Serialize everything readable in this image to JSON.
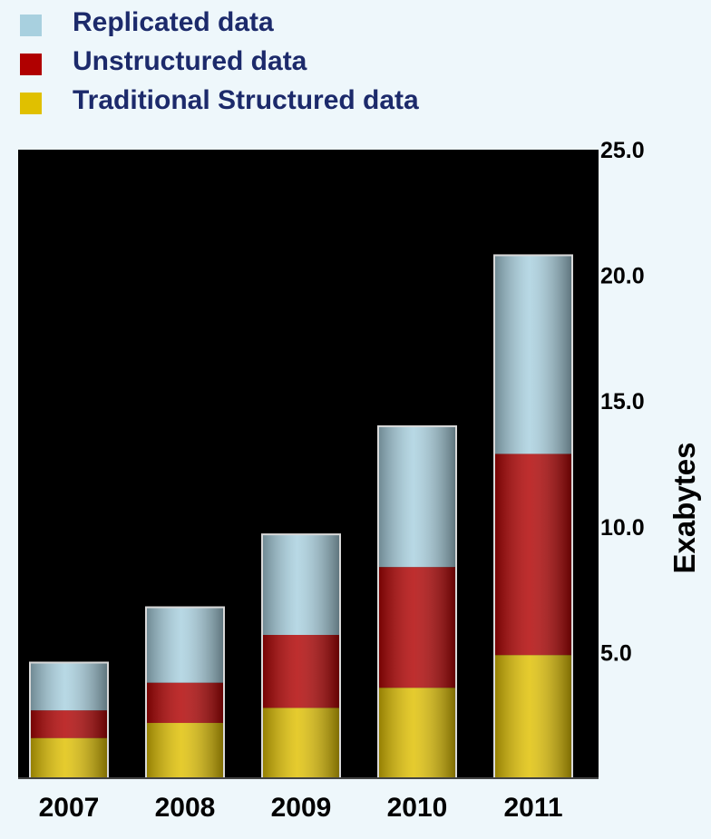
{
  "chart_data": {
    "type": "bar",
    "stacked": true,
    "categories": [
      "2007",
      "2008",
      "2009",
      "2010",
      "2011"
    ],
    "series": [
      {
        "name": "Traditional Structured data",
        "values": [
          1.6,
          2.2,
          2.8,
          3.6,
          4.9
        ],
        "color": "#e0c000"
      },
      {
        "name": "Unstructured data",
        "values": [
          1.1,
          1.6,
          2.9,
          4.8,
          8.0
        ],
        "color": "#b00000"
      },
      {
        "name": "Replicated data",
        "values": [
          1.9,
          3.0,
          4.0,
          5.6,
          7.9
        ],
        "color": "#a8d0df"
      }
    ],
    "ylabel": "Exabytes",
    "ylim": [
      0,
      25
    ],
    "y_ticks": [
      "5.0",
      "10.0",
      "15.0",
      "20.0",
      "25.0"
    ],
    "y_axis_position": "right",
    "legend_position": "top-left",
    "plot_background": "#000000"
  },
  "legend": {
    "items": [
      {
        "label": "Replicated data",
        "color": "#a8d0df"
      },
      {
        "label": "Unstructured data",
        "color": "#b00000"
      },
      {
        "label": "Traditional Structured data",
        "color": "#e0c000"
      }
    ]
  }
}
